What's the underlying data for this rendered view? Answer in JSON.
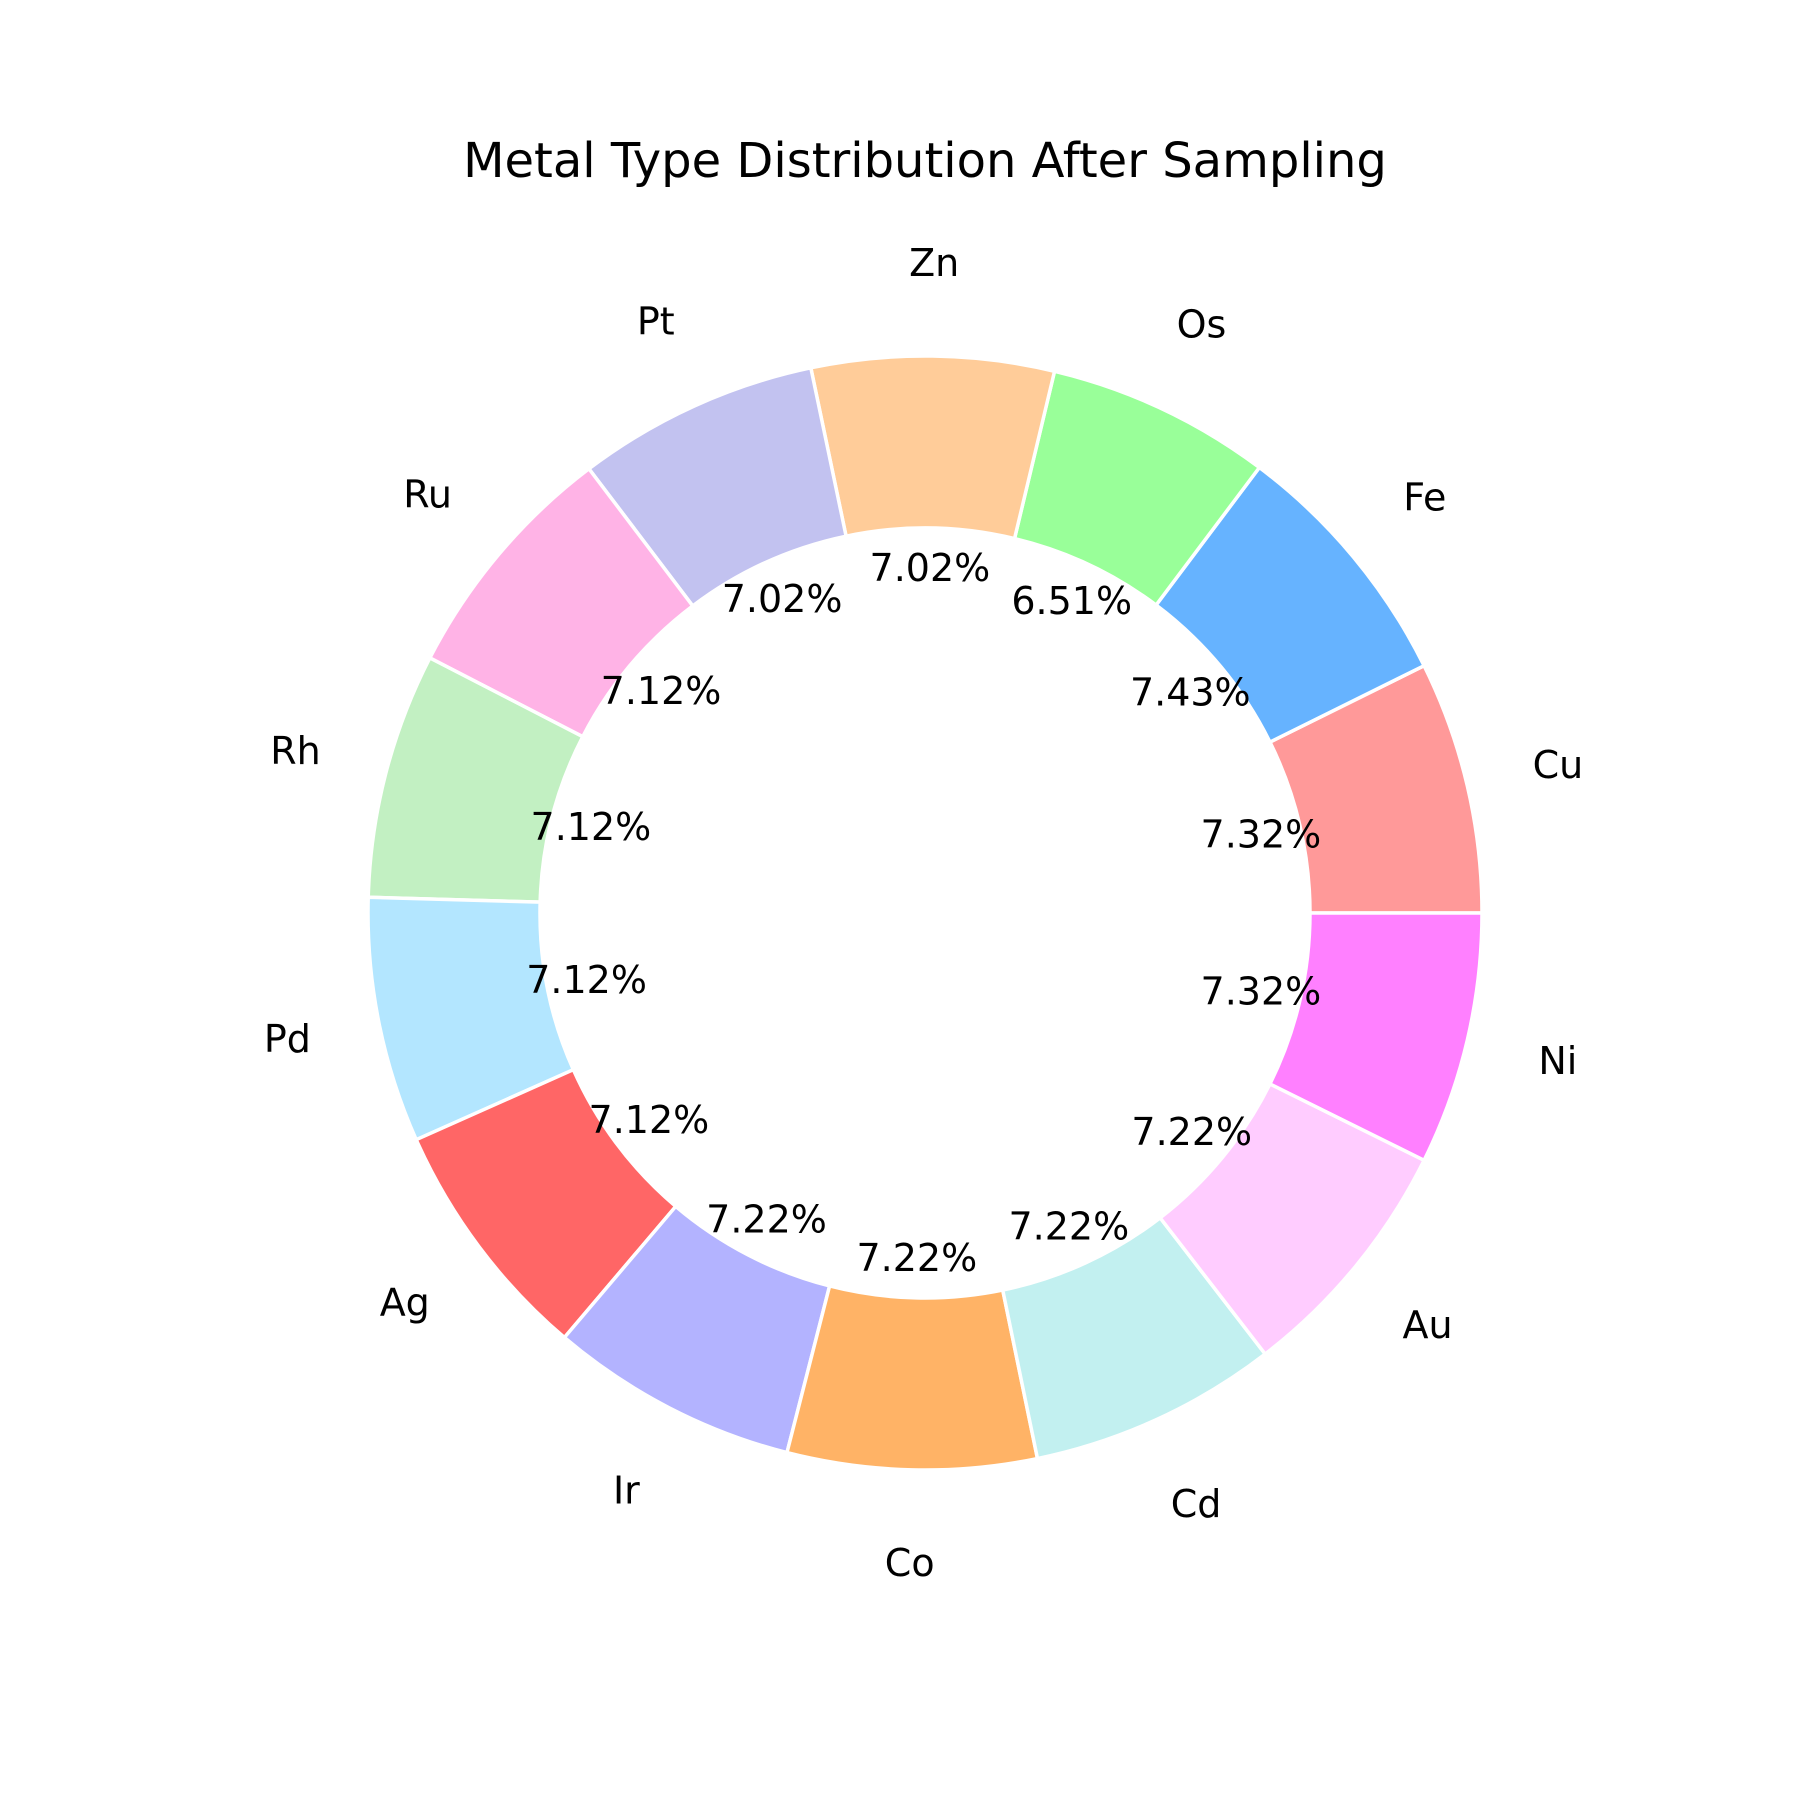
{
  "chart_data": {
    "type": "pie",
    "subtype": "donut",
    "title": "Metal Type Distribution After Sampling",
    "start_angle_deg": 0,
    "direction": "counterclockwise",
    "slices": [
      {
        "label": "Cu",
        "value": 7.32,
        "pct_label": "7.32%",
        "color": "#ff9999"
      },
      {
        "label": "Fe",
        "value": 7.43,
        "pct_label": "7.43%",
        "color": "#66b3ff"
      },
      {
        "label": "Os",
        "value": 6.51,
        "pct_label": "6.51%",
        "color": "#99ff99"
      },
      {
        "label": "Zn",
        "value": 7.02,
        "pct_label": "7.02%",
        "color": "#ffcc99"
      },
      {
        "label": "Pt",
        "value": 7.02,
        "pct_label": "7.02%",
        "color": "#c2c2f0"
      },
      {
        "label": "Ru",
        "value": 7.12,
        "pct_label": "7.12%",
        "color": "#ffb3e6"
      },
      {
        "label": "Rh",
        "value": 7.12,
        "pct_label": "7.12%",
        "color": "#c2f0c2"
      },
      {
        "label": "Pd",
        "value": 7.12,
        "pct_label": "7.12%",
        "color": "#b3e6ff"
      },
      {
        "label": "Ag",
        "value": 7.12,
        "pct_label": "7.12%",
        "color": "#ff6666"
      },
      {
        "label": "Ir",
        "value": 7.22,
        "pct_label": "7.22%",
        "color": "#b3b3ff"
      },
      {
        "label": "Co",
        "value": 7.22,
        "pct_label": "7.22%",
        "color": "#ffb366"
      },
      {
        "label": "Cd",
        "value": 7.22,
        "pct_label": "7.22%",
        "color": "#c2f0f0"
      },
      {
        "label": "Au",
        "value": 7.22,
        "pct_label": "7.22%",
        "color": "#ffccff"
      },
      {
        "label": "Ni",
        "value": 7.32,
        "pct_label": "7.32%",
        "color": "#ff80ff"
      }
    ]
  }
}
